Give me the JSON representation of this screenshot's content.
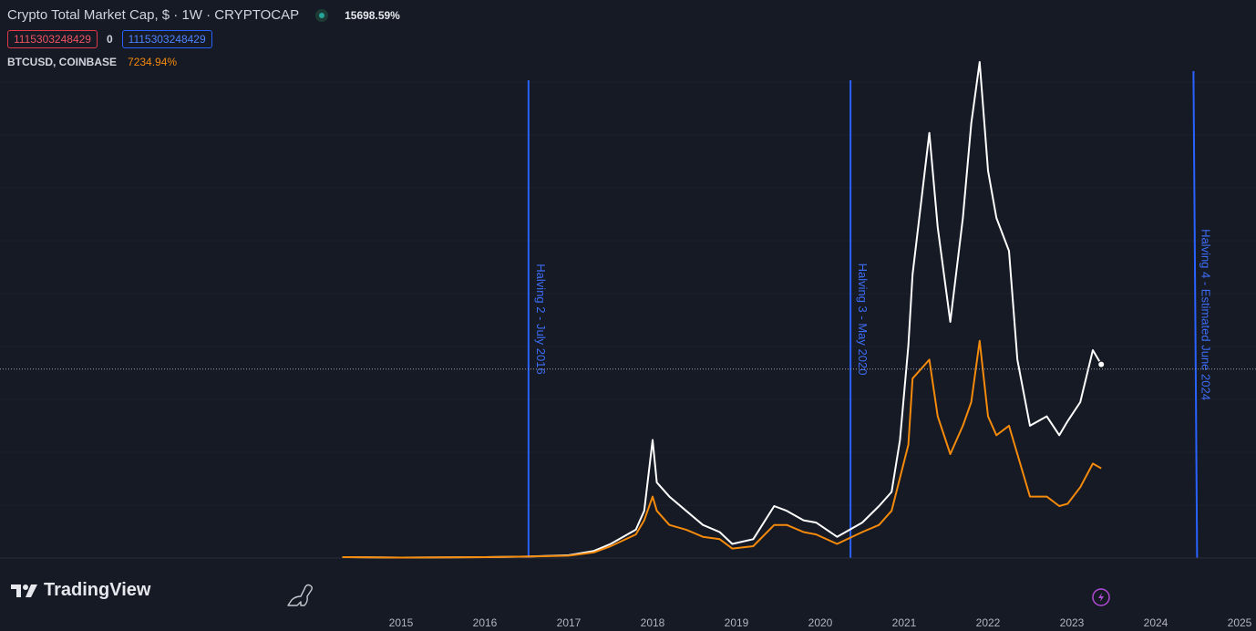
{
  "header": {
    "title": "Crypto Total Market Cap, $ · 1W · CRYPTOCAP",
    "change_pct": "15698.59%",
    "value_red": "1115303248429",
    "zero_label": "0",
    "value_blue": "1115303248429",
    "compare_symbol": "BTCUSD, COINBASE",
    "compare_change": "7234.94%"
  },
  "brand": {
    "name": "TradingView"
  },
  "colors": {
    "background": "#161a25",
    "total_line": "#ffffff",
    "btc_line": "#f58a0b",
    "halving_line": "#2962ff",
    "down_red": "#ef5362"
  },
  "icons": [
    "tradingview-logo-icon",
    "dino-icon",
    "lightning-icon"
  ],
  "chart_data": {
    "type": "line",
    "x_ticks": [
      "2015",
      "2016",
      "2017",
      "2018",
      "2019",
      "2020",
      "2021",
      "2022",
      "2023",
      "2024",
      "2025"
    ],
    "xlim": [
      2014.0,
      2025.0
    ],
    "y_scale": "percent change, unlabeled",
    "ylim": [
      0,
      100
    ],
    "crosshair_y": 40,
    "halvings": [
      {
        "label": "Halving 2 - July 2016",
        "x": 2016.52
      },
      {
        "label": "Halving 3 - May 2020",
        "x": 2020.36
      },
      {
        "label": "Halving 4 - Estimated June 2024",
        "x": 2024.45
      }
    ],
    "series": [
      {
        "name": "Crypto Total Market Cap",
        "points": [
          [
            2014.3,
            0.2
          ],
          [
            2015.0,
            0.1
          ],
          [
            2016.0,
            0.2
          ],
          [
            2016.5,
            0.3
          ],
          [
            2017.0,
            0.6
          ],
          [
            2017.3,
            1.5
          ],
          [
            2017.5,
            3.0
          ],
          [
            2017.8,
            6.0
          ],
          [
            2017.9,
            10.0
          ],
          [
            2018.0,
            25.0
          ],
          [
            2018.05,
            16.0
          ],
          [
            2018.2,
            13.0
          ],
          [
            2018.4,
            10.0
          ],
          [
            2018.6,
            7.0
          ],
          [
            2018.8,
            5.5
          ],
          [
            2018.95,
            3.0
          ],
          [
            2019.2,
            4.0
          ],
          [
            2019.45,
            11.0
          ],
          [
            2019.6,
            10.0
          ],
          [
            2019.8,
            8.0
          ],
          [
            2019.95,
            7.5
          ],
          [
            2020.2,
            4.5
          ],
          [
            2020.5,
            7.5
          ],
          [
            2020.7,
            11.0
          ],
          [
            2020.85,
            14.0
          ],
          [
            2020.95,
            25.0
          ],
          [
            2021.05,
            45.0
          ],
          [
            2021.1,
            60.0
          ],
          [
            2021.3,
            90.0
          ],
          [
            2021.4,
            70.0
          ],
          [
            2021.55,
            50.0
          ],
          [
            2021.7,
            72.0
          ],
          [
            2021.8,
            92.0
          ],
          [
            2021.9,
            105.0
          ],
          [
            2022.0,
            82.0
          ],
          [
            2022.1,
            72.0
          ],
          [
            2022.25,
            65.0
          ],
          [
            2022.35,
            42.0
          ],
          [
            2022.5,
            28.0
          ],
          [
            2022.7,
            30.0
          ],
          [
            2022.85,
            26.0
          ],
          [
            2022.95,
            29.0
          ],
          [
            2023.1,
            33.0
          ],
          [
            2023.25,
            44.0
          ],
          [
            2023.35,
            41.0
          ]
        ]
      },
      {
        "name": "BTCUSD, COINBASE",
        "points": [
          [
            2014.3,
            0.2
          ],
          [
            2015.0,
            0.1
          ],
          [
            2016.0,
            0.2
          ],
          [
            2016.5,
            0.3
          ],
          [
            2017.0,
            0.5
          ],
          [
            2017.3,
            1.2
          ],
          [
            2017.5,
            2.5
          ],
          [
            2017.8,
            5.0
          ],
          [
            2017.9,
            8.0
          ],
          [
            2018.0,
            13.0
          ],
          [
            2018.05,
            10.0
          ],
          [
            2018.2,
            7.0
          ],
          [
            2018.4,
            6.0
          ],
          [
            2018.6,
            4.5
          ],
          [
            2018.8,
            4.0
          ],
          [
            2018.95,
            2.0
          ],
          [
            2019.2,
            2.5
          ],
          [
            2019.45,
            7.0
          ],
          [
            2019.6,
            7.0
          ],
          [
            2019.8,
            5.5
          ],
          [
            2019.95,
            5.0
          ],
          [
            2020.2,
            3.0
          ],
          [
            2020.5,
            5.5
          ],
          [
            2020.7,
            7.0
          ],
          [
            2020.85,
            10.0
          ],
          [
            2020.95,
            17.0
          ],
          [
            2021.05,
            24.0
          ],
          [
            2021.1,
            38.0
          ],
          [
            2021.3,
            42.0
          ],
          [
            2021.4,
            30.0
          ],
          [
            2021.55,
            22.0
          ],
          [
            2021.7,
            28.0
          ],
          [
            2021.8,
            33.0
          ],
          [
            2021.9,
            46.0
          ],
          [
            2022.0,
            30.0
          ],
          [
            2022.1,
            26.0
          ],
          [
            2022.25,
            28.0
          ],
          [
            2022.35,
            22.0
          ],
          [
            2022.5,
            13.0
          ],
          [
            2022.7,
            13.0
          ],
          [
            2022.85,
            11.0
          ],
          [
            2022.95,
            11.5
          ],
          [
            2023.1,
            15.0
          ],
          [
            2023.25,
            20.0
          ],
          [
            2023.35,
            19.0
          ]
        ]
      }
    ]
  }
}
